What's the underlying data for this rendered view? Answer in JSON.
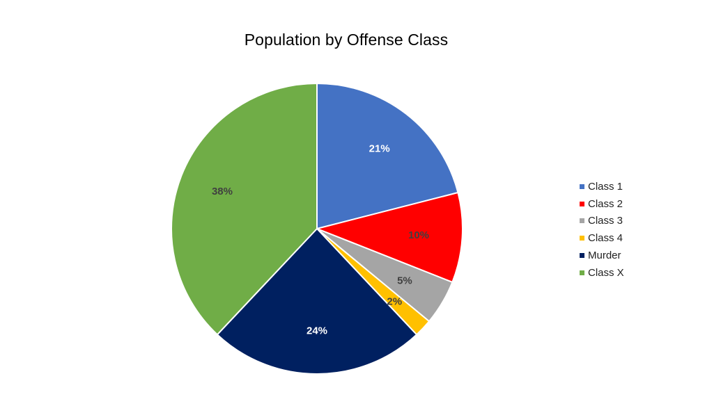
{
  "chart_data": {
    "type": "pie",
    "title": "Population by Offense Class",
    "categories": [
      "Class 1",
      "Class 2",
      "Class 3",
      "Class 4",
      "Murder",
      "Class X"
    ],
    "values": [
      21,
      10,
      5,
      2,
      24,
      38
    ],
    "labels": [
      "21%",
      "10%",
      "5%",
      "2%",
      "24%",
      "38%"
    ],
    "colors": [
      "#4472C4",
      "#FF0000",
      "#A5A5A5",
      "#FFC000",
      "#002060",
      "#70AD47"
    ],
    "label_colors": [
      "#FFFFFF",
      "#404040",
      "#404040",
      "#404040",
      "#FFFFFF",
      "#404040"
    ],
    "start_angle_deg": 0,
    "direction": "clockwise",
    "legend_position": "right"
  }
}
